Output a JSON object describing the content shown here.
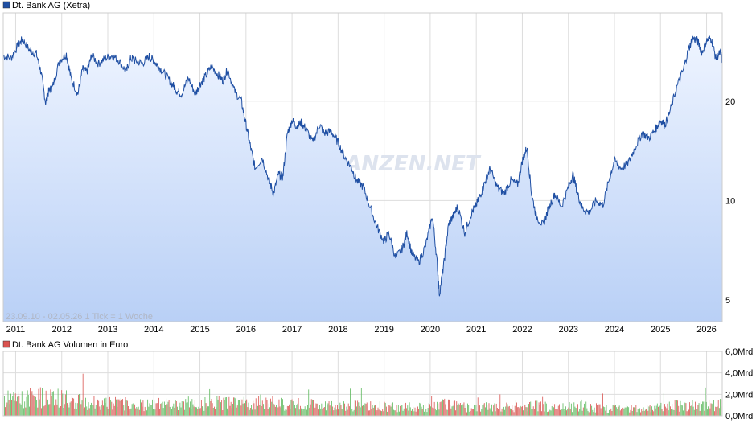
{
  "colors": {
    "price_line": "#1f4fa3",
    "area_top": "#eef4ff",
    "area_bottom": "#b9d0f6",
    "grid": "#dddddd",
    "vol_green": "#5cb85c",
    "vol_red": "#d9534f",
    "legend_price": "#1f4fa3",
    "legend_volume": "#d9534f"
  },
  "watermark": "FINANZEN.NET",
  "chart_data": [
    {
      "type": "line",
      "title": "Dt. Bank AG (Xetra)",
      "range_text": "23.09.10 - 02.05.26    1 Tick = 1 Woche",
      "y_scale": "log",
      "ylim": [
        4.3,
        37
      ],
      "y_ticks": [
        5,
        10,
        20
      ],
      "y_tick_labels": [
        "5",
        "10",
        "20"
      ],
      "xlim": [
        2010.73,
        2026.34
      ],
      "x_ticks": [
        2011,
        2012,
        2013,
        2014,
        2015,
        2016,
        2017,
        2018,
        2019,
        2020,
        2021,
        2022,
        2023,
        2024,
        2025,
        2026
      ],
      "x_tick_labels": [
        "2011",
        "2012",
        "2013",
        "2014",
        "2015",
        "2016",
        "2017",
        "2018",
        "2019",
        "2020",
        "2021",
        "2022",
        "2023",
        "2024",
        "2025",
        "2026"
      ],
      "grid": true,
      "series": [
        {
          "x": [
            2010.73,
            2010.9,
            2011.05,
            2011.15,
            2011.3,
            2011.45,
            2011.55,
            2011.65,
            2011.72,
            2011.8,
            2011.95,
            2012.1,
            2012.2,
            2012.35,
            2012.45,
            2012.55,
            2012.65,
            2012.8,
            2012.95,
            2013.1,
            2013.25,
            2013.4,
            2013.5,
            2013.6,
            2013.75,
            2013.9,
            2014.0,
            2014.1,
            2014.25,
            2014.4,
            2014.5,
            2014.6,
            2014.75,
            2014.9,
            2015.0,
            2015.1,
            2015.25,
            2015.4,
            2015.5,
            2015.6,
            2015.75,
            2015.9,
            2016.0,
            2016.1,
            2016.2,
            2016.35,
            2016.5,
            2016.6,
            2016.7,
            2016.8,
            2016.9,
            2017.0,
            2017.1,
            2017.2,
            2017.3,
            2017.45,
            2017.6,
            2017.7,
            2017.85,
            2018.0,
            2018.15,
            2018.3,
            2018.4,
            2018.55,
            2018.7,
            2018.85,
            2019.0,
            2019.1,
            2019.25,
            2019.4,
            2019.5,
            2019.6,
            2019.75,
            2019.9,
            2020.05,
            2020.15,
            2020.2,
            2020.3,
            2020.4,
            2020.5,
            2020.6,
            2020.75,
            2020.9,
            2021.0,
            2021.1,
            2021.2,
            2021.3,
            2021.45,
            2021.6,
            2021.75,
            2021.9,
            2022.0,
            2022.1,
            2022.2,
            2022.3,
            2022.45,
            2022.55,
            2022.7,
            2022.85,
            2023.0,
            2023.1,
            2023.2,
            2023.3,
            2023.45,
            2023.6,
            2023.75,
            2023.9,
            2024.0,
            2024.15,
            2024.3,
            2024.45,
            2024.6,
            2024.75,
            2024.9,
            2025.0,
            2025.1,
            2025.2,
            2025.35,
            2025.5,
            2025.6,
            2025.7,
            2025.8,
            2025.9,
            2026.0,
            2026.1,
            2026.2,
            2026.3,
            2026.34
          ],
          "values": [
            27.5,
            27.0,
            29.5,
            30.8,
            28.5,
            27.8,
            24.5,
            19.8,
            21.5,
            22.0,
            26.5,
            27.8,
            23.5,
            21.0,
            25.0,
            24.5,
            27.5,
            26.0,
            27.0,
            27.5,
            26.5,
            24.5,
            27.0,
            26.5,
            26.0,
            27.3,
            26.5,
            25.5,
            24.0,
            22.5,
            21.5,
            21.0,
            23.5,
            21.0,
            22.5,
            23.5,
            25.5,
            24.0,
            23.0,
            25.0,
            21.5,
            20.0,
            17.0,
            14.5,
            12.5,
            13.5,
            11.5,
            10.5,
            12.0,
            11.8,
            16.0,
            17.5,
            16.8,
            17.2,
            16.5,
            15.0,
            17.0,
            16.0,
            16.2,
            15.0,
            13.5,
            12.5,
            11.5,
            11.0,
            9.5,
            8.3,
            7.5,
            8.0,
            6.7,
            7.2,
            8.0,
            6.9,
            6.5,
            7.3,
            9.0,
            6.5,
            5.2,
            6.5,
            8.5,
            9.0,
            9.6,
            8.0,
            9.2,
            9.7,
            10.5,
            11.5,
            12.5,
            11.0,
            10.5,
            11.5,
            11.2,
            13.2,
            14.5,
            10.5,
            9.0,
            8.4,
            9.3,
            10.5,
            9.6,
            11.0,
            12.0,
            10.5,
            9.5,
            9.2,
            10.0,
            9.7,
            11.8,
            13.2,
            12.5,
            13.0,
            14.5,
            16.0,
            15.5,
            16.5,
            17.5,
            17.0,
            18.5,
            22.0,
            25.0,
            28.5,
            31.0,
            30.5,
            28.0,
            30.5,
            31.0,
            27.0,
            28.0,
            26.5
          ]
        }
      ]
    },
    {
      "type": "bar",
      "title": "Dt. Bank AG Volumen in Euro",
      "ylim": [
        0,
        6
      ],
      "y_ticks": [
        0,
        2,
        4,
        6
      ],
      "y_tick_labels": [
        "0,0Mrd",
        "2,0Mrd",
        "4,0Mrd",
        "6,0Mrd"
      ],
      "unit": "Mrd Euro",
      "grid": true,
      "x": [
        2010.8,
        2011.3,
        2011.8,
        2012.3,
        2012.8,
        2013.3,
        2013.8,
        2014.3,
        2014.8,
        2015.3,
        2015.8,
        2016.3,
        2016.8,
        2017.3,
        2017.8,
        2018.3,
        2018.8,
        2019.3,
        2019.8,
        2020.3,
        2020.8,
        2021.3,
        2021.8,
        2022.3,
        2022.8,
        2023.3,
        2023.8,
        2024.3,
        2024.8,
        2025.3,
        2025.8,
        2026.2
      ],
      "values": [
        1.8,
        1.9,
        2.1,
        1.6,
        1.4,
        1.3,
        1.2,
        1.3,
        1.2,
        1.4,
        1.3,
        1.5,
        1.3,
        1.2,
        1.1,
        1.1,
        1.0,
        1.0,
        0.9,
        1.3,
        0.9,
        1.0,
        0.9,
        1.1,
        0.9,
        1.0,
        0.8,
        0.8,
        0.8,
        1.1,
        1.0,
        1.2
      ]
    }
  ]
}
